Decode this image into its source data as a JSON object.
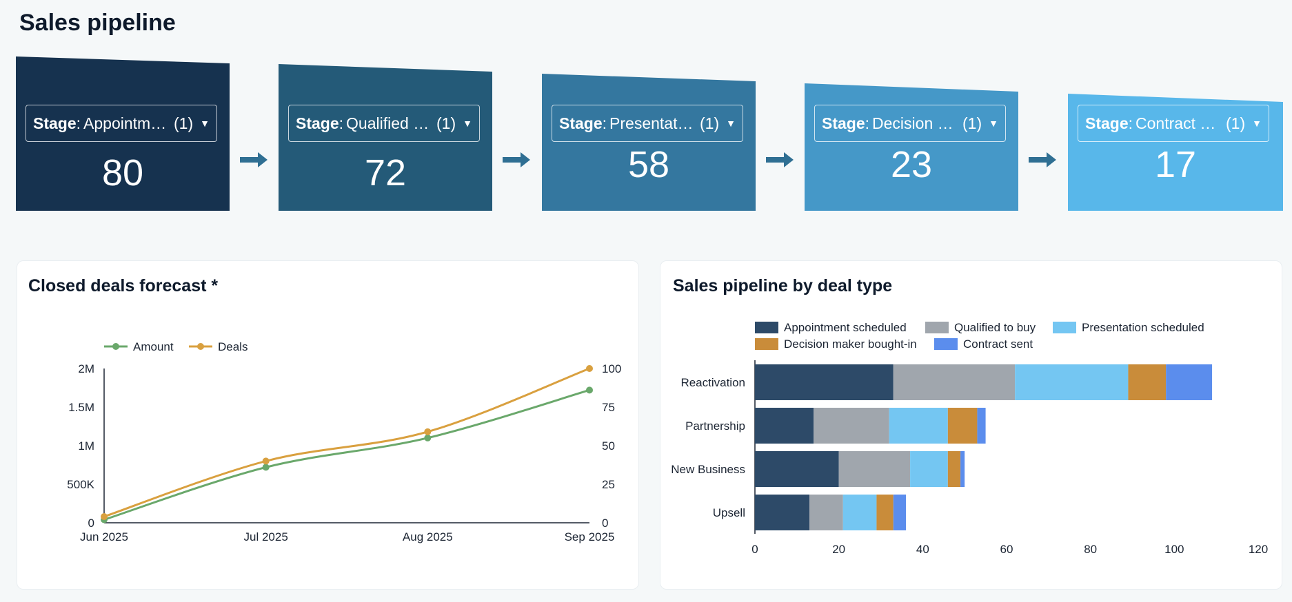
{
  "page": {
    "title": "Sales pipeline"
  },
  "funnel": {
    "stages": [
      {
        "key": "Stage",
        "value_label": "Appointm…",
        "count_label": "(1)",
        "metric": "80",
        "color": "#16324f"
      },
      {
        "key": "Stage",
        "value_label": "Qualified t…",
        "count_label": "(1)",
        "metric": "72",
        "color": "#245a78"
      },
      {
        "key": "Stage",
        "value_label": "Presentati…",
        "count_label": "(1)",
        "metric": "58",
        "color": "#34779f"
      },
      {
        "key": "Stage",
        "value_label": "Decision …",
        "count_label": "(1)",
        "metric": "23",
        "color": "#4598c8"
      },
      {
        "key": "Stage",
        "value_label": "Contract s…",
        "count_label": "(1)",
        "metric": "17",
        "color": "#58b7ea"
      }
    ],
    "arrow_color": "#2f6f93"
  },
  "forecast_card": {
    "title": "Closed deals forecast *"
  },
  "deal_type_card": {
    "title": "Sales pipeline by deal type"
  },
  "chart_data": [
    {
      "type": "line",
      "title": "Closed deals forecast *",
      "x": [
        "Jun 2025",
        "Jul 2025",
        "Aug 2025",
        "Sep 2025"
      ],
      "series": [
        {
          "name": "Amount",
          "axis": "left",
          "color": "#6aa86b",
          "values": [
            40000,
            720000,
            1100000,
            1720000
          ]
        },
        {
          "name": "Deals",
          "axis": "right",
          "color": "#d9a03f",
          "values": [
            4,
            40,
            59,
            100
          ]
        }
      ],
      "y_left": {
        "range": [
          0,
          2000000
        ],
        "ticks": [
          0,
          500000,
          1000000,
          1500000,
          2000000
        ],
        "tick_labels": [
          "0",
          "500K",
          "1M",
          "1.5M",
          "2M"
        ]
      },
      "y_right": {
        "range": [
          0,
          100
        ],
        "ticks": [
          0,
          25,
          50,
          75,
          100
        ],
        "tick_labels": [
          "0",
          "25",
          "50",
          "75",
          "100"
        ]
      },
      "legend": "top-left"
    },
    {
      "type": "bar",
      "orientation": "horizontal",
      "stacked": true,
      "title": "Sales pipeline by deal type",
      "categories": [
        "Reactivation",
        "Partnership",
        "New Business",
        "Upsell"
      ],
      "series": [
        {
          "name": "Appointment scheduled",
          "color": "#2d4a68",
          "values": [
            33,
            14,
            20,
            13
          ]
        },
        {
          "name": "Qualified to buy",
          "color": "#a0a6ad",
          "values": [
            29,
            18,
            17,
            8
          ]
        },
        {
          "name": "Presentation scheduled",
          "color": "#74c6f2",
          "values": [
            27,
            14,
            9,
            8
          ]
        },
        {
          "name": "Decision maker bought-in",
          "color": "#c98c3a",
          "values": [
            9,
            7,
            3,
            4
          ]
        },
        {
          "name": "Contract sent",
          "color": "#5b8ded",
          "values": [
            11,
            2,
            1,
            3
          ]
        }
      ],
      "x_range": [
        0,
        120
      ],
      "x_ticks": [
        0,
        20,
        40,
        60,
        80,
        100,
        120
      ],
      "legend": "top"
    }
  ]
}
